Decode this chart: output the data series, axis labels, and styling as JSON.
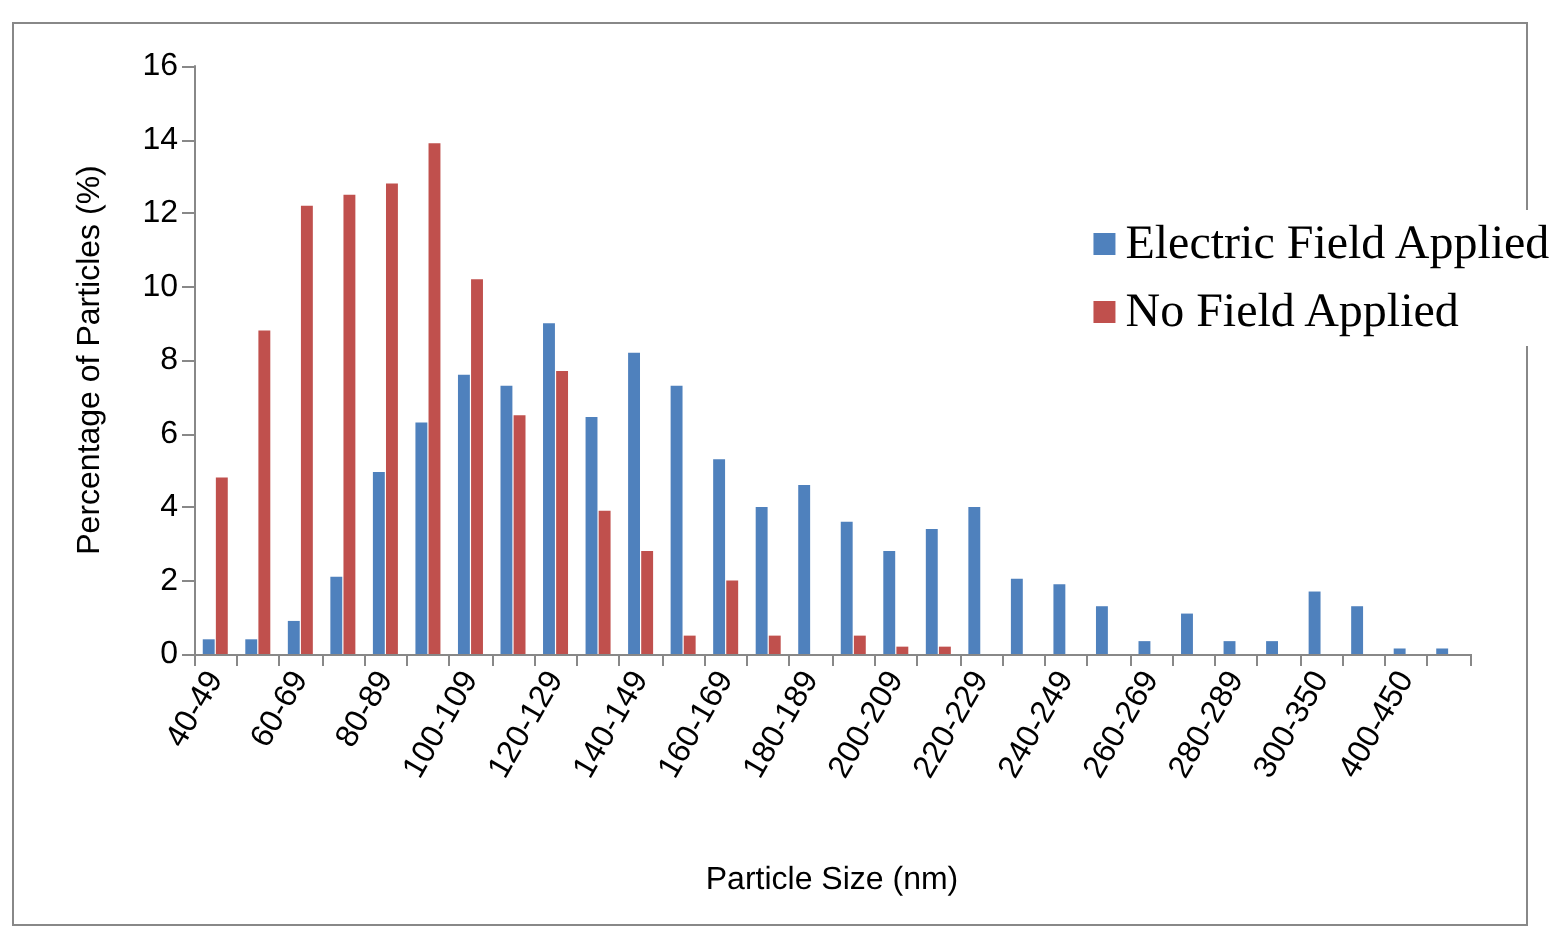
{
  "chart_data": {
    "type": "bar",
    "xlabel": "Particle Size (nm)",
    "ylabel": "Percentage of Particles (%)",
    "categories": [
      "40-49",
      null,
      "60-69",
      null,
      "80-89",
      null,
      "100-109",
      null,
      "120-129",
      null,
      "140-149",
      null,
      "160-169",
      null,
      "180-189",
      null,
      "200-209",
      null,
      "220-229",
      null,
      "240-249",
      null,
      "260-269",
      null,
      "280-289",
      null,
      "300-350",
      null,
      "400-450",
      null
    ],
    "series": [
      {
        "name": "Electric Field Applied",
        "color": "#4f81bd",
        "values": [
          0.4,
          0.4,
          0.9,
          2.1,
          4.95,
          6.3,
          7.6,
          7.3,
          9.0,
          6.45,
          8.2,
          7.3,
          5.3,
          4.0,
          4.6,
          3.6,
          2.8,
          3.4,
          4.0,
          2.05,
          1.9,
          1.3,
          0.35,
          1.1,
          0.35,
          0.35,
          1.7,
          1.3,
          0.15,
          0.15
        ]
      },
      {
        "name": "No Field Applied",
        "color": "#c0504d",
        "values": [
          4.8,
          8.8,
          12.2,
          12.5,
          12.8,
          13.9,
          10.2,
          6.5,
          7.7,
          3.9,
          2.8,
          0.5,
          2.0,
          0.5,
          0,
          0.5,
          0.2,
          0.2,
          0,
          0,
          0,
          0,
          0,
          0,
          0,
          0,
          0,
          0,
          0,
          0
        ]
      }
    ],
    "ylim": [
      0,
      16
    ],
    "yticks": [
      0,
      2,
      4,
      6,
      8,
      10,
      12,
      14,
      16
    ],
    "grid": false,
    "legend": "right"
  }
}
